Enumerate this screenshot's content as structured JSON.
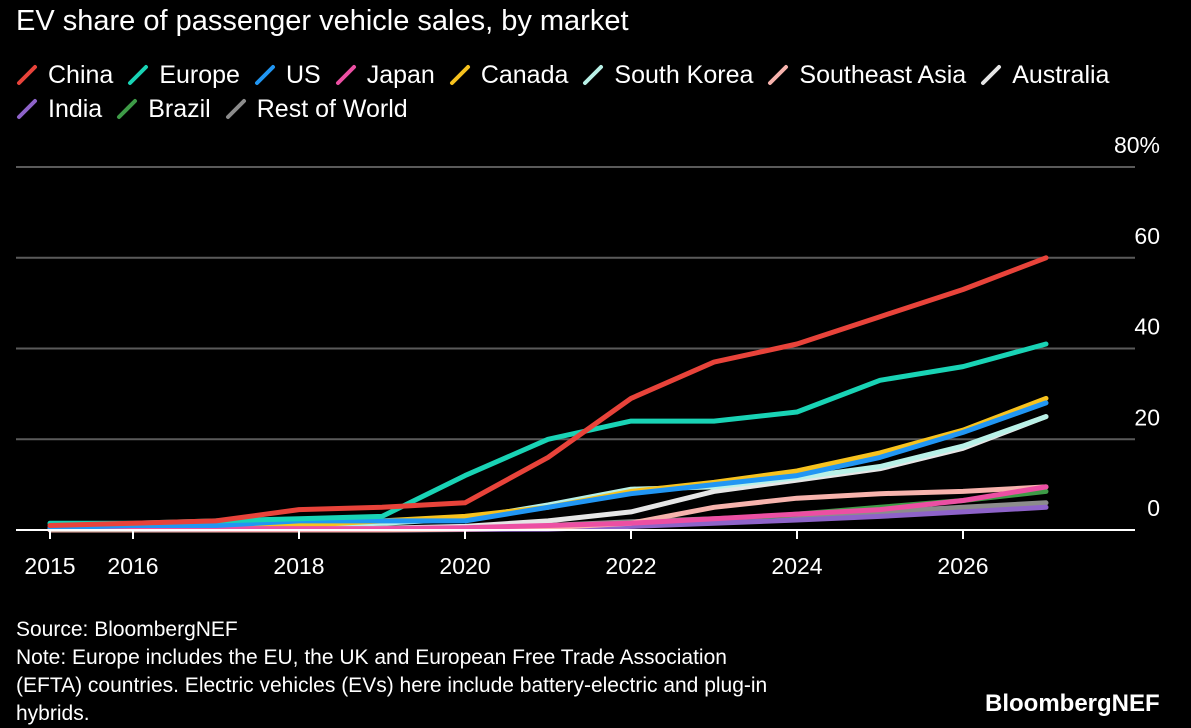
{
  "title": "EV share of passenger vehicle sales, by market",
  "source": "Source: BloombergNEF",
  "note_line1": "Note: Europe includes the EU, the UK and European Free Trade Association",
  "note_line2": "(EFTA) countries. Electric vehicles (EVs) here include battery-electric and plug-in",
  "note_line3": "hybrids.",
  "brand": "BloombergNEF",
  "chart_data": {
    "type": "line",
    "title": "EV share of passenger vehicle sales, by market",
    "xlabel": "",
    "ylabel": "",
    "x": [
      2015,
      2016,
      2017,
      2018,
      2019,
      2020,
      2021,
      2022,
      2023,
      2024,
      2025,
      2026,
      2027
    ],
    "x_ticks": [
      2015,
      2016,
      2018,
      2020,
      2022,
      2024,
      2026
    ],
    "x_tick_labels": [
      "2015",
      "2016",
      "2018",
      "2020",
      "2022",
      "2024",
      "2026"
    ],
    "xlim": [
      2015,
      2028
    ],
    "ylim": [
      0,
      80
    ],
    "y_ticks": [
      0,
      20,
      40,
      60,
      80
    ],
    "y_tick_labels": [
      "0",
      "20",
      "40",
      "60",
      "80%"
    ],
    "grid": true,
    "legend_position": "top",
    "series": [
      {
        "name": "China",
        "color": "#e8433a",
        "values": [
          1,
          1.5,
          2,
          4.5,
          5,
          6,
          16,
          29,
          37,
          41,
          47,
          53,
          60
        ]
      },
      {
        "name": "Europe",
        "color": "#19d3b5",
        "values": [
          1.5,
          1.5,
          2,
          2.5,
          3,
          12,
          20,
          24,
          24,
          26,
          33,
          36,
          41
        ]
      },
      {
        "name": "US",
        "color": "#2196f3",
        "values": [
          0.5,
          1,
          1,
          2,
          2,
          2,
          5,
          8,
          10,
          12,
          16,
          21.5,
          28
        ]
      },
      {
        "name": "Japan",
        "color": "#ec4fa3",
        "values": [
          0.3,
          0.3,
          0.3,
          0.3,
          0.3,
          0.5,
          1,
          1.5,
          2.5,
          3.5,
          4.5,
          6.5,
          9.5
        ]
      },
      {
        "name": "Canada",
        "color": "#f7c21e",
        "values": [
          0.3,
          0.3,
          0.5,
          1,
          2,
          3,
          5,
          8.5,
          10.5,
          13,
          17,
          22,
          29
        ]
      },
      {
        "name": "South Korea",
        "color": "#b9f1e7",
        "values": [
          0.2,
          0.2,
          0.3,
          1,
          1.5,
          2.5,
          5.5,
          9,
          9.5,
          11.5,
          14,
          18.5,
          25
        ]
      },
      {
        "name": "Southeast Asia",
        "color": "#f7b3ad",
        "values": [
          0,
          0,
          0,
          0,
          0,
          0.2,
          0.5,
          1.5,
          5,
          7,
          8,
          8.5,
          9.5
        ]
      },
      {
        "name": "Australia",
        "color": "#e6e6e6",
        "values": [
          0.1,
          0.1,
          0.2,
          0.2,
          0.4,
          0.8,
          2,
          4,
          8.5,
          11,
          13.5,
          18,
          25
        ]
      },
      {
        "name": "India",
        "color": "#8e63c9",
        "values": [
          0,
          0,
          0,
          0,
          0,
          0.1,
          0.2,
          0.8,
          1.5,
          2.2,
          3,
          4,
          5
        ]
      },
      {
        "name": "Brazil",
        "color": "#3e9b47",
        "values": [
          0,
          0,
          0,
          0,
          0,
          0.1,
          0.3,
          1,
          2,
          3.5,
          5,
          6.5,
          8.5
        ]
      },
      {
        "name": "Rest of World",
        "color": "#8c8c8c",
        "values": [
          0,
          0,
          0.1,
          0.2,
          0.3,
          0.5,
          1,
          1.8,
          2.5,
          3.2,
          4,
          5,
          6
        ]
      }
    ]
  }
}
